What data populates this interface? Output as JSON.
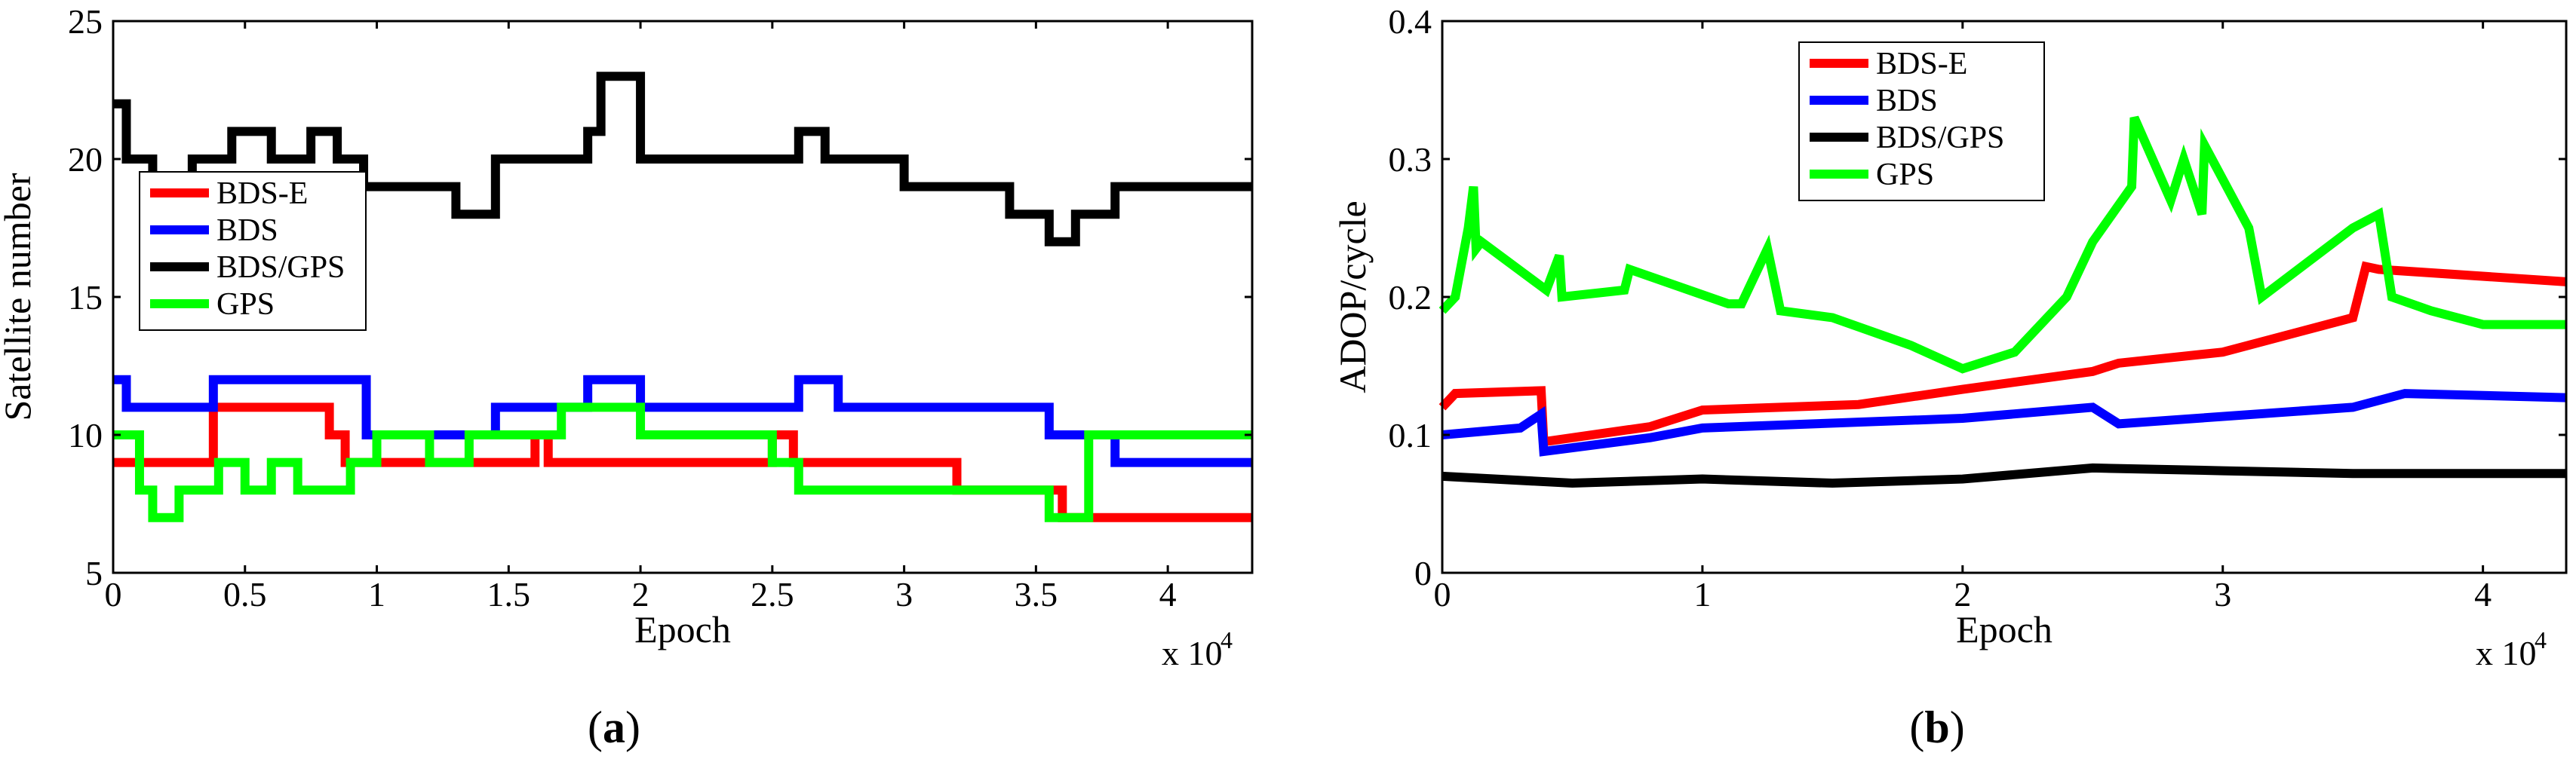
{
  "chart_data": [
    {
      "id": "a",
      "type": "line",
      "panel_label": "a",
      "xlabel": "Epoch",
      "ylabel": "Satellite number",
      "x_multiplier": "x 10",
      "x_multiplier_exp": "4",
      "xlim": [
        0,
        4.32
      ],
      "ylim": [
        5,
        25
      ],
      "xticks": [
        "0",
        "0.5",
        "1",
        "1.5",
        "2",
        "2.5",
        "3",
        "3.5",
        "4"
      ],
      "yticks": [
        "5",
        "10",
        "15",
        "20",
        "25"
      ],
      "legend_position": "upper-left",
      "series": [
        {
          "name": "BDS-E",
          "color": "#ff0000",
          "step": true,
          "x": [
            0,
            0.38,
            0.82,
            0.88,
            0.97,
            1.6,
            1.65,
            2.5,
            2.58,
            3.2,
            3.3,
            3.35,
            3.6,
            3.65,
            4.32
          ],
          "y": [
            9,
            11,
            10,
            9,
            9,
            10,
            9,
            10,
            9,
            8,
            8,
            8,
            7,
            7,
            7
          ]
        },
        {
          "name": "BDS",
          "color": "#0000ff",
          "step": true,
          "x": [
            0,
            0.05,
            0.2,
            0.38,
            0.55,
            0.7,
            0.96,
            1.45,
            1.8,
            2.0,
            2.6,
            2.75,
            3.55,
            3.7,
            3.8,
            4.32
          ],
          "y": [
            12,
            11,
            11,
            12,
            12,
            12,
            10,
            11,
            12,
            11,
            12,
            11,
            10,
            10,
            9,
            9
          ]
        },
        {
          "name": "BDS/GPS",
          "color": "#000000",
          "step": true,
          "x": [
            0,
            0.05,
            0.15,
            0.2,
            0.3,
            0.45,
            0.6,
            0.75,
            0.85,
            0.95,
            1.2,
            1.3,
            1.45,
            1.7,
            1.8,
            1.85,
            2.0,
            2.4,
            2.6,
            2.7,
            3.0,
            3.4,
            3.55,
            3.65,
            3.8,
            3.9,
            4.1,
            4.32
          ],
          "y": [
            22,
            20,
            19,
            19,
            20,
            21,
            20,
            21,
            20,
            19,
            19,
            18,
            20,
            20,
            21,
            23,
            20,
            20,
            21,
            20,
            19,
            18,
            17,
            18,
            19,
            19,
            19,
            19
          ]
        },
        {
          "name": "GPS",
          "color": "#00ff00",
          "step": true,
          "x": [
            0,
            0.1,
            0.15,
            0.25,
            0.4,
            0.5,
            0.6,
            0.7,
            0.9,
            1.0,
            1.2,
            1.35,
            1.5,
            1.7,
            1.9,
            2.0,
            2.3,
            2.5,
            2.6,
            2.8,
            3.0,
            3.1,
            3.25,
            3.45,
            3.55,
            3.7,
            3.8,
            4.1,
            4.2,
            4.32
          ],
          "y": [
            10,
            8,
            7,
            8,
            9,
            8,
            9,
            8,
            9,
            10,
            9,
            10,
            10,
            11,
            11,
            10,
            10,
            9,
            8,
            8,
            8,
            8,
            8,
            8,
            7,
            10,
            10,
            10,
            10,
            10
          ]
        }
      ]
    },
    {
      "id": "b",
      "type": "line",
      "panel_label": "b",
      "xlabel": "Epoch",
      "ylabel": "ADOP/cycle",
      "x_multiplier": "x 10",
      "x_multiplier_exp": "4",
      "xlim": [
        0,
        4.32
      ],
      "ylim": [
        0,
        0.4
      ],
      "xticks": [
        "0",
        "1",
        "2",
        "3",
        "4"
      ],
      "yticks": [
        "0",
        "0.1",
        "0.2",
        "0.3",
        "0.4"
      ],
      "legend_position": "upper-center",
      "series": [
        {
          "name": "BDS-E",
          "color": "#ff0000",
          "step": false,
          "x": [
            0,
            0.05,
            0.38,
            0.39,
            0.8,
            1.0,
            1.6,
            2.0,
            2.5,
            2.6,
            3.0,
            3.5,
            3.55,
            3.6,
            4.32
          ],
          "y": [
            0.12,
            0.13,
            0.132,
            0.095,
            0.106,
            0.118,
            0.122,
            0.133,
            0.146,
            0.152,
            0.16,
            0.185,
            0.222,
            0.22,
            0.211
          ]
        },
        {
          "name": "BDS",
          "color": "#0000ff",
          "step": false,
          "x": [
            0,
            0.3,
            0.38,
            0.39,
            0.8,
            1.0,
            2.0,
            2.5,
            2.6,
            3.5,
            3.7,
            4.32
          ],
          "y": [
            0.1,
            0.105,
            0.115,
            0.088,
            0.098,
            0.105,
            0.112,
            0.12,
            0.108,
            0.12,
            0.13,
            0.127
          ]
        },
        {
          "name": "BDS/GPS",
          "color": "#000000",
          "step": false,
          "x": [
            0,
            0.5,
            1.0,
            1.5,
            2.0,
            2.5,
            3.0,
            3.5,
            4.0,
            4.32
          ],
          "y": [
            0.07,
            0.065,
            0.068,
            0.065,
            0.068,
            0.076,
            0.074,
            0.072,
            0.072,
            0.072
          ]
        },
        {
          "name": "GPS",
          "color": "#00ff00",
          "step": false,
          "x": [
            0,
            0.05,
            0.1,
            0.12,
            0.13,
            0.15,
            0.4,
            0.45,
            0.46,
            0.7,
            0.72,
            1.1,
            1.15,
            1.25,
            1.3,
            1.5,
            1.8,
            2.0,
            2.2,
            2.4,
            2.5,
            2.65,
            2.66,
            2.8,
            2.85,
            2.92,
            2.93,
            3.1,
            3.15,
            3.5,
            3.6,
            3.65,
            3.8,
            4.0,
            4.32
          ],
          "y": [
            0.19,
            0.2,
            0.25,
            0.28,
            0.235,
            0.24,
            0.205,
            0.23,
            0.2,
            0.205,
            0.22,
            0.195,
            0.195,
            0.235,
            0.19,
            0.185,
            0.165,
            0.148,
            0.16,
            0.2,
            0.24,
            0.28,
            0.33,
            0.27,
            0.3,
            0.26,
            0.31,
            0.25,
            0.2,
            0.25,
            0.26,
            0.2,
            0.19,
            0.18,
            0.18
          ]
        }
      ]
    }
  ]
}
